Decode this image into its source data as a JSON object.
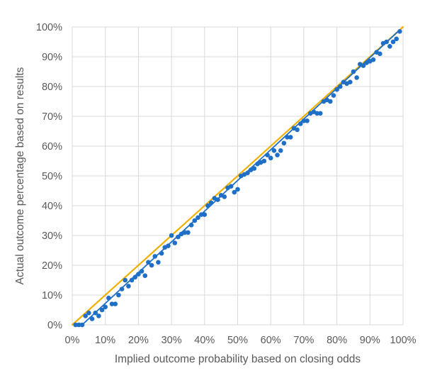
{
  "chart_data": {
    "type": "scatter",
    "title": "",
    "xlabel": "Implied outcome probability based on closing odds",
    "ylabel": "Actual outcome percentage based on results",
    "xlim": [
      0,
      100
    ],
    "ylim": [
      0,
      100
    ],
    "x_ticks": [
      "0%",
      "10%",
      "20%",
      "30%",
      "40%",
      "50%",
      "60%",
      "70%",
      "80%",
      "90%",
      "100%"
    ],
    "y_ticks": [
      "0%",
      "10%",
      "20%",
      "30%",
      "40%",
      "50%",
      "60%",
      "70%",
      "80%",
      "90%",
      "100%"
    ],
    "grid": true,
    "legend": "none",
    "series": [
      {
        "kind": "points",
        "color": "#1f6fc6",
        "x": [
          1,
          2,
          3,
          4,
          5,
          6,
          7,
          8,
          9,
          10,
          11,
          12,
          13,
          14,
          15,
          16,
          17,
          18,
          19,
          20,
          21,
          22,
          23,
          24,
          25,
          26,
          27,
          28,
          29,
          30,
          31,
          32,
          33,
          34,
          35,
          36,
          37,
          38,
          39,
          40,
          41,
          42,
          43,
          44,
          45,
          46,
          47,
          48,
          49,
          50,
          51,
          52,
          53,
          54,
          55,
          56,
          57,
          58,
          59,
          60,
          61,
          62,
          63,
          64,
          65,
          66,
          67,
          68,
          69,
          70,
          71,
          72,
          73,
          74,
          75,
          76,
          77,
          78,
          79,
          80,
          81,
          82,
          83,
          84,
          85,
          86,
          87,
          88,
          89,
          90,
          91,
          92,
          93,
          94,
          95,
          96,
          97,
          98,
          99
        ],
        "y": [
          0,
          0,
          0,
          3,
          4,
          2,
          4,
          3,
          5,
          6,
          9,
          7,
          7,
          10,
          12,
          15,
          13,
          15,
          16,
          17,
          18,
          16.5,
          21,
          20,
          23,
          21,
          24,
          26,
          26.5,
          30,
          27.5,
          29.5,
          30.5,
          31,
          31,
          33.5,
          35,
          36,
          37,
          37,
          40,
          41,
          42.5,
          42,
          43.5,
          43,
          46,
          46.5,
          44.5,
          45.5,
          50,
          50.5,
          51,
          52,
          52.5,
          54,
          54.5,
          55,
          57,
          56,
          58.5,
          57,
          58.5,
          61,
          63,
          63,
          66,
          65.5,
          67.5,
          68.5,
          68.5,
          71,
          71.5,
          71,
          71,
          75,
          75.5,
          75,
          77,
          79,
          80,
          81.5,
          81,
          81.5,
          85,
          83,
          87.5,
          87,
          88,
          88.5,
          89,
          91.5,
          91,
          94.5,
          95,
          93.5,
          95,
          96,
          98.5
        ]
      },
      {
        "kind": "trendline",
        "color": "#1f6fc6",
        "x": [
          3,
          99
        ],
        "y": [
          0,
          99
        ]
      },
      {
        "kind": "reference-line",
        "color": "#f0b000",
        "x": [
          0,
          100
        ],
        "y": [
          0,
          100
        ]
      }
    ]
  }
}
